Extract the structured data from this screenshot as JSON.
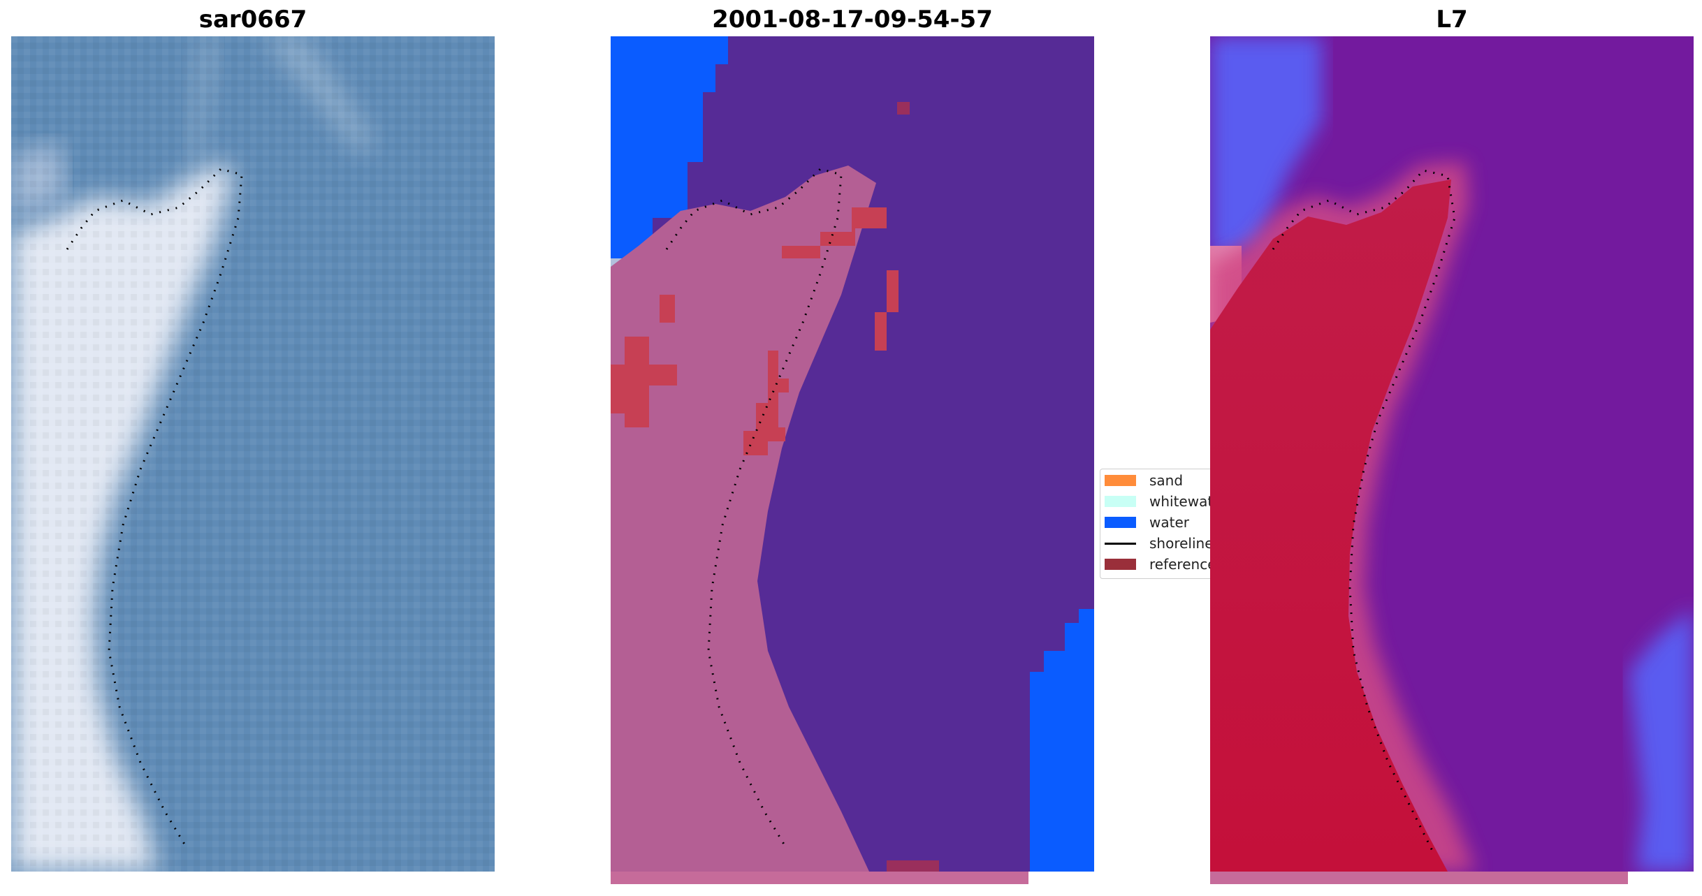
{
  "panels": [
    {
      "title": "sar0667"
    },
    {
      "title": "2001-08-17-09-54-57"
    },
    {
      "title": "L7"
    }
  ],
  "legend": {
    "items": [
      {
        "label": "sand",
        "color": "#ff8c3a"
      },
      {
        "label": "whitewater",
        "color": "#c8fff5"
      },
      {
        "label": "water",
        "color": "#0a5cff"
      },
      {
        "label": "shoreline",
        "color": "#000000"
      },
      {
        "label": "reference",
        "color": "#9a2f3a"
      }
    ]
  },
  "colors": {
    "rgb_water": "#5f8bb6",
    "rgb_land": "#dfe6f2",
    "class_water": "#562b96",
    "class_land": "#b45f94",
    "class_blue": "#0a5cff",
    "class_reference": "#c74054",
    "ndwi_land": "#c31d45",
    "ndwi_water": "#6e1a9a",
    "ndwi_blue": "#3f52ff"
  }
}
